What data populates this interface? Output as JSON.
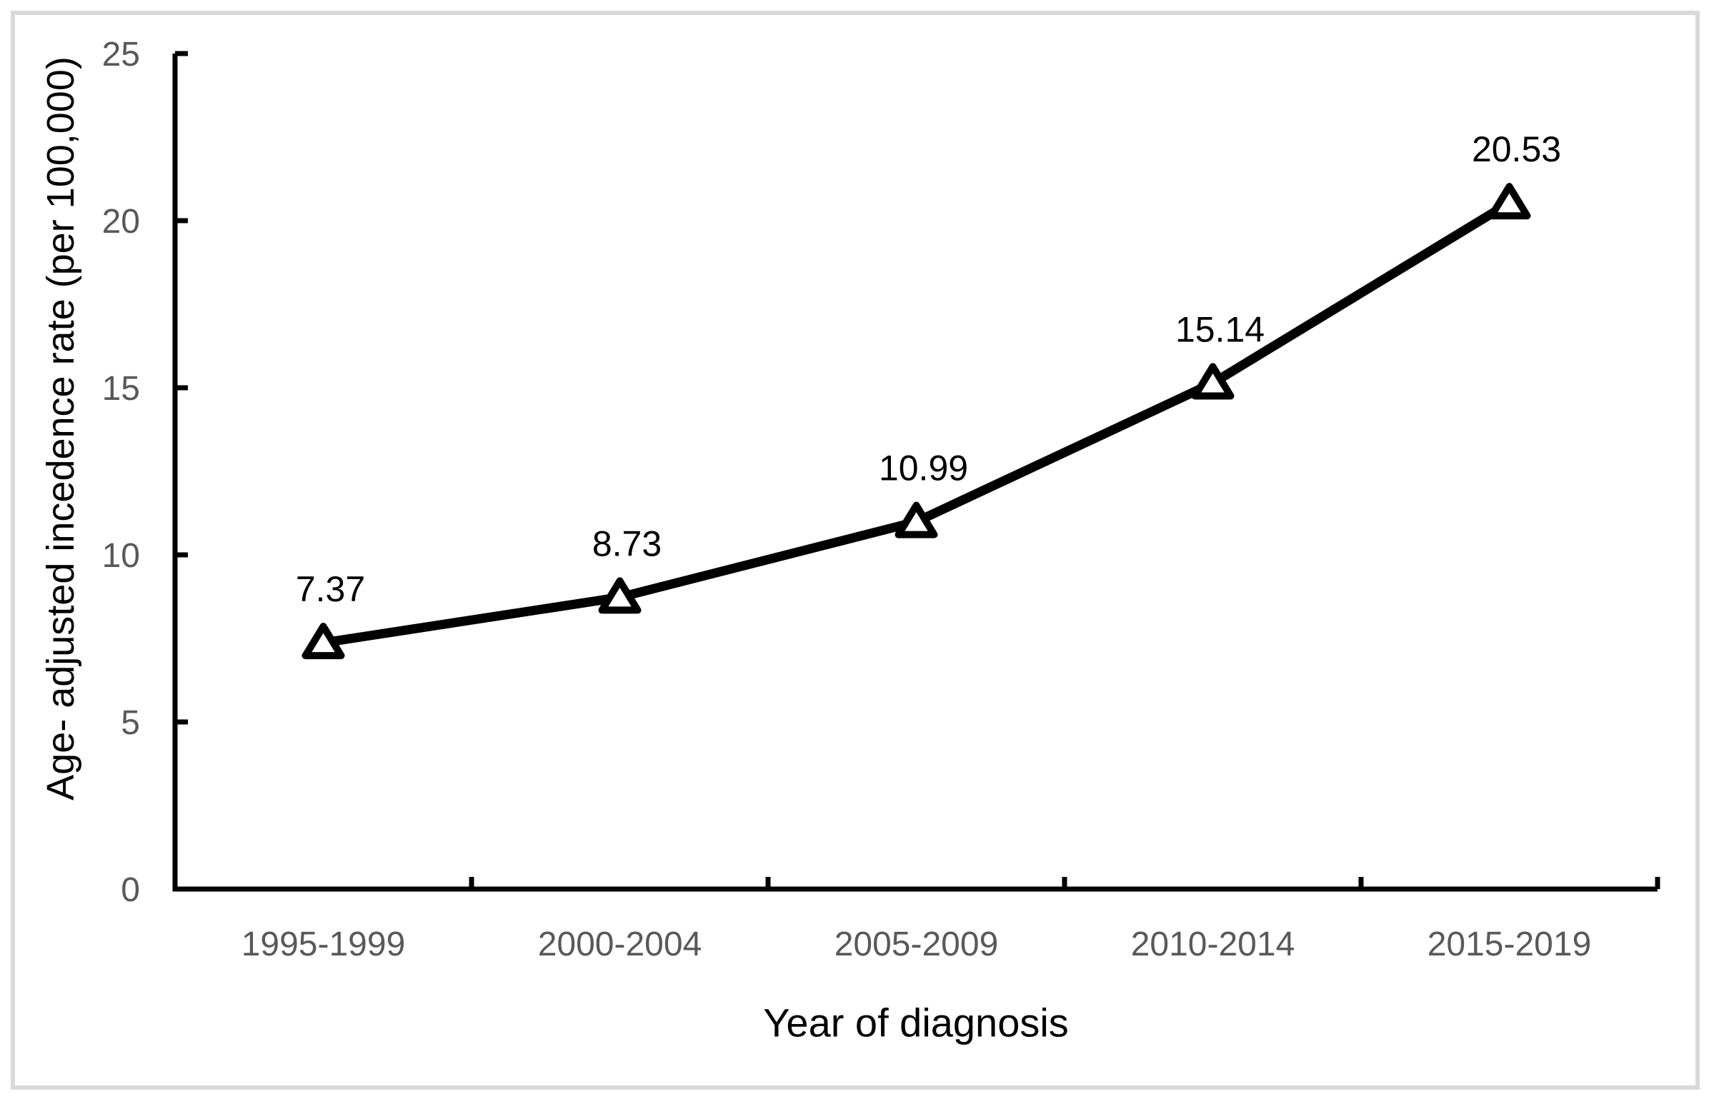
{
  "figure": {
    "background_color": "#ffffff",
    "border_color": "#d9d9d9"
  },
  "chart_data": {
    "type": "line",
    "title": "",
    "xlabel": "Year of diagnosis",
    "ylabel": "Age- adjusted incedence rate (per 100,000)",
    "categories": [
      "1995-1999",
      "2000-2004",
      "2005-2009",
      "2010-2014",
      "2015-2019"
    ],
    "values": [
      7.37,
      8.73,
      10.99,
      15.14,
      20.53
    ],
    "data_labels": [
      "7.37",
      "8.73",
      "10.99",
      "15.14",
      "20.53"
    ],
    "ylim": [
      0,
      25
    ],
    "yticks": [
      0,
      5,
      10,
      15,
      20,
      25
    ],
    "grid": false,
    "legend": false,
    "marker": "open-triangle",
    "line_color": "#000000",
    "marker_fill": "#ffffff",
    "axis_color": "#000000",
    "tick_label_color": "#595959",
    "data_label_color": "#000000"
  }
}
